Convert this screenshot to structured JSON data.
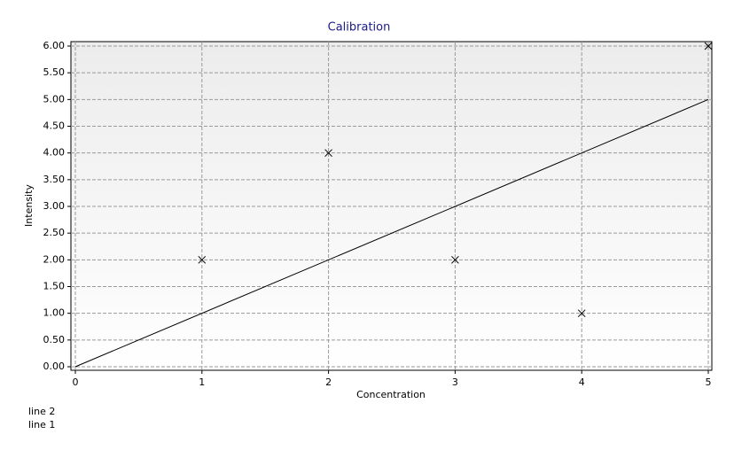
{
  "chart_data": {
    "type": "scatter",
    "title": "Calibration",
    "x_label": "Concentration",
    "y_label": "Intensity",
    "xlim": [
      0,
      5
    ],
    "ylim": [
      0,
      6
    ],
    "xticks": [
      0,
      1,
      2,
      3,
      4,
      5
    ],
    "yticks": [
      {
        "value": 0,
        "label": "0.00"
      },
      {
        "value": 0.5,
        "label": "0.50"
      },
      {
        "value": 1,
        "label": "1.00"
      },
      {
        "value": 1.5,
        "label": "1.50"
      },
      {
        "value": 2,
        "label": "2.00"
      },
      {
        "value": 2.5,
        "label": "2.50"
      },
      {
        "value": 3,
        "label": "3.00"
      },
      {
        "value": 3.5,
        "label": "3.50"
      },
      {
        "value": 4,
        "label": "4.00"
      },
      {
        "value": 4.5,
        "label": "4.50"
      },
      {
        "value": 5,
        "label": "5.00"
      },
      {
        "value": 5.5,
        "label": "5.50"
      },
      {
        "value": 6,
        "label": "6.00"
      }
    ],
    "grid": true,
    "legend": "bottom-left",
    "series": [
      {
        "name": "line 2",
        "color": "#000000",
        "mode": "line",
        "x": [
          0,
          5
        ],
        "values": [
          0,
          5
        ]
      },
      {
        "name": "line 1",
        "color": "#000000",
        "mode": "markers",
        "x": [
          1,
          2,
          3,
          4,
          5
        ],
        "values": [
          2,
          4,
          2,
          1,
          6
        ]
      }
    ]
  }
}
